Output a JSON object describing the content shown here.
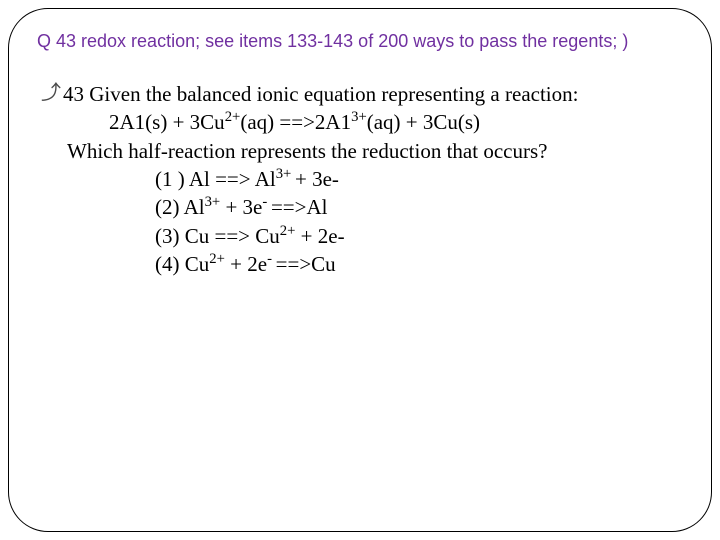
{
  "title_color": "#7030a0",
  "body_color": "#000000",
  "border_color": "#000000",
  "background_color": "#ffffff",
  "title": "Q 43  redox reaction; see items 133-143 of 200 ways to pass the regents; )",
  "bullet_glyph": "⤴",
  "question_number": "43",
  "question_text": "Given the balanced ionic equation representing a reaction:",
  "equation_prefix": "2A1(s) + 3Cu",
  "equation_sup1": "2+",
  "equation_mid": "(aq) ==>2A1",
  "equation_sup2": "3+",
  "equation_suffix": "(aq) + 3Cu(s)",
  "which_text": "Which half-reaction represents the reduction that occurs?",
  "options": {
    "o1_a": "(1 ) Al  ==> Al",
    "o1_sup": "3+ ",
    "o1_b": "+ 3e-",
    "o2_a": "(2) Al",
    "o2_sup": "3+",
    "o2_b": " + 3e",
    "o2_sup2": "- ",
    "o2_c": "==>Al",
    "o3_a": "(3) Cu  ==> Cu",
    "o3_sup": "2+",
    "o3_b": " + 2e-",
    "o4_a": "(4) Cu",
    "o4_sup": "2+",
    "o4_b": " + 2e",
    "o4_sup2": "-  ",
    "o4_c": "==>Cu"
  }
}
